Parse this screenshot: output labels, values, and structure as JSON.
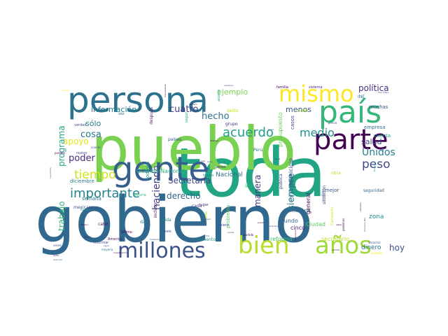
{
  "words": [
    {
      "text": "gobierno",
      "color": "#31688e",
      "weight": 100
    },
    {
      "text": "toda",
      "color": "#21a585",
      "weight": 90
    },
    {
      "text": "pueblo",
      "color": "#7ad151",
      "weight": 88
    },
    {
      "text": "persona",
      "color": "#2c728e",
      "weight": 55
    },
    {
      "text": "gente",
      "color": "#355f8d",
      "weight": 52
    },
    {
      "text": "país",
      "color": "#35b779",
      "weight": 45
    },
    {
      "text": "parte",
      "color": "#440154",
      "weight": 38
    },
    {
      "text": "mismo",
      "color": "#fde725",
      "weight": 38
    },
    {
      "text": "años",
      "color": "#a0da39",
      "weight": 34
    },
    {
      "text": "bien",
      "color": "#b5de2b",
      "weight": 33
    },
    {
      "text": "millones",
      "color": "#3b528b",
      "weight": 30
    },
    {
      "text": "importante",
      "color": "#26828e",
      "weight": 20
    },
    {
      "text": "tiempo",
      "color": "#d2e21b",
      "weight": 18
    },
    {
      "text": "acuerdo",
      "color": "#1f9e89",
      "weight": 18
    },
    {
      "text": "peso",
      "color": "#3e4989",
      "weight": 16
    },
    {
      "text": "medio",
      "color": "#21918c",
      "weight": 15
    },
    {
      "text": "Unidos",
      "color": "#287c8e",
      "weight": 14
    },
    {
      "text": "haciendo",
      "color": "#414487",
      "weight": 14
    },
    {
      "text": "siempre",
      "color": "#2a788e",
      "weight": 13
    },
    {
      "text": "Secretaria",
      "color": "#3f4889",
      "weight": 12
    },
    {
      "text": "derecho",
      "color": "#30698e",
      "weight": 12
    },
    {
      "text": "hecho",
      "color": "#2d708e",
      "weight": 12
    },
    {
      "text": "manera",
      "color": "#46337f",
      "weight": 11
    },
    {
      "text": "apoyo",
      "color": "#e5e419",
      "weight": 12
    },
    {
      "text": "poder",
      "color": "#472d7b",
      "weight": 12
    },
    {
      "text": "cosa",
      "color": "#2a768e",
      "weight": 11
    },
    {
      "text": "cuatro",
      "color": "#443a83",
      "weight": 11
    },
    {
      "text": "información",
      "color": "#26818e",
      "weight": 11
    },
    {
      "text": "ejemplo",
      "color": "#7fd34e",
      "weight": 11
    },
    {
      "text": "política",
      "color": "#472f7d",
      "weight": 11
    },
    {
      "text": "programa",
      "color": "#20a486",
      "weight": 11
    },
    {
      "text": "trabajo",
      "color": "#35b779",
      "weight": 11
    },
    {
      "text": "hoy",
      "color": "#3b528b",
      "weight": 11
    },
    {
      "text": "salud",
      "color": "#414487",
      "weight": 10
    },
    {
      "text": "menos",
      "color": "#39568c",
      "weight": 10
    },
    {
      "text": "sólo",
      "color": "#27808e",
      "weight": 10
    },
    {
      "text": "Nacional",
      "color": "#2e6e8e",
      "weight": 9
    },
    {
      "text": "presupuesto",
      "color": "#6ccd5a",
      "weight": 9
    },
    {
      "text": "municipio",
      "color": "#3a548c",
      "weight": 9
    },
    {
      "text": "dinero",
      "color": "#2c738e",
      "weight": 9
    },
    {
      "text": "Guardia Nacional",
      "color": "#2fb47c",
      "weight": 7
    },
    {
      "text": "reforma",
      "color": "#3fbc73",
      "weight": 8
    },
    {
      "text": "secretario",
      "color": "#b8de29",
      "weight": 8
    },
    {
      "text": "zona",
      "color": "#23898e",
      "weight": 8
    },
    {
      "text": "mundo",
      "color": "#31678e",
      "weight": 8
    },
    {
      "text": "Ciudad",
      "color": "#5ec962",
      "weight": 8
    },
    {
      "text": "general",
      "color": "#440154",
      "weight": 8
    },
    {
      "text": "cinco",
      "color": "#482374",
      "weight": 8
    },
    {
      "text": "mañana",
      "color": "#33638d",
      "weight": 7
    },
    {
      "text": "problema",
      "color": "#5ec962",
      "weight": 7
    },
    {
      "text": "empresa",
      "color": "#2a788e",
      "weight": 7
    },
    {
      "text": "cuenta",
      "color": "#1e9b8a",
      "weight": 7
    },
    {
      "text": "casos",
      "color": "#404688",
      "weight": 7
    },
    {
      "text": "muchas",
      "color": "#3b528b",
      "weight": 7
    },
    {
      "text": "creo",
      "color": "#b5de2b",
      "weight": 7
    },
    {
      "text": "todavía",
      "color": "#20928c",
      "weight": 7
    },
    {
      "text": "ley",
      "color": "#2db27d",
      "weight": 7
    },
    {
      "text": "diciembre",
      "color": "#287d8e",
      "weight": 7
    },
    {
      "text": "semana",
      "color": "#2b758e",
      "weight": 7
    },
    {
      "text": "seguridad",
      "color": "#31688e",
      "weight": 6
    },
    {
      "text": "situación",
      "color": "#3e4989",
      "weight": 6
    },
    {
      "text": "mejor",
      "color": "#3b528b",
      "weight": 7
    },
    {
      "text": "obra",
      "color": "#b5de2b",
      "weight": 6
    },
    {
      "text": "construcción",
      "color": "#2c728e",
      "weight": 6
    },
    {
      "text": "pública",
      "color": "#404588",
      "weight": 6
    },
    {
      "text": "Perú",
      "color": "#287d8e",
      "weight": 6
    },
    {
      "text": "grupo",
      "color": "#472c7a",
      "weight": 6
    },
    {
      "text": "delito",
      "color": "#c8e020",
      "weight": 6
    },
    {
      "text": "después",
      "color": "#481a6c",
      "weight": 6
    },
    {
      "text": "países",
      "color": "#3b528b",
      "weight": 6
    },
    {
      "text": "momento",
      "color": "#21908d",
      "weight": 6
    },
    {
      "text": "cada",
      "color": "#453781",
      "weight": 6
    },
    {
      "text": "sino",
      "color": "#2c728e",
      "weight": 6
    },
    {
      "text": "vida",
      "color": "#25848e",
      "weight": 6
    },
    {
      "text": "incluso",
      "color": "#440154",
      "weight": 6
    },
    {
      "text": "dar",
      "color": "#27808e",
      "weight": 6
    },
    {
      "text": "cabo",
      "color": "#471365",
      "weight": 6
    },
    {
      "text": "historia",
      "color": "#35b779",
      "weight": 5
    },
    {
      "text": "mexicano",
      "color": "#3b528b",
      "weight": 6
    },
    {
      "text": "verdad",
      "color": "#3e4a89",
      "weight": 5
    },
    {
      "text": "vez",
      "color": "#2e6e8e",
      "weight": 5
    },
    {
      "text": "nuevo",
      "color": "#3b528b",
      "weight": 5
    },
    {
      "text": "pueden",
      "color": "#440154",
      "weight": 4
    },
    {
      "text": "asunto",
      "color": "#22a884",
      "weight": 5
    },
    {
      "text": "pesos",
      "color": "#482878",
      "weight": 5
    },
    {
      "text": "lugar",
      "color": "#482475",
      "weight": 5
    },
    {
      "text": "seguir",
      "color": "#25ac82",
      "weight": 5
    },
    {
      "text": "informar",
      "color": "#3b528b",
      "weight": 5
    },
    {
      "text": "América",
      "color": "#481668",
      "weight": 5
    },
    {
      "text": "último",
      "color": "#440154",
      "weight": 5
    },
    {
      "text": "hacen",
      "color": "#25848e",
      "weight": 4
    },
    {
      "text": "veces",
      "color": "#3e4989",
      "weight": 4
    },
    {
      "text": "Campeche",
      "color": "#d8e219",
      "weight": 5
    },
    {
      "text": "podemos",
      "color": "#440154",
      "weight": 4
    },
    {
      "text": "Veracruz",
      "color": "#3b528b",
      "weight": 4
    },
    {
      "text": "proceso",
      "color": "#fde725",
      "weight": 4
    },
    {
      "text": "INE",
      "color": "#2a788e",
      "weight": 6
    },
    {
      "text": "familia",
      "color": "#440154",
      "weight": 5
    },
    {
      "text": "sistema",
      "color": "#481f70",
      "weight": 5
    },
    {
      "text": "precio",
      "color": "#3b528b",
      "weight": 4
    },
    {
      "text": "cuanto",
      "color": "#3e4989",
      "weight": 4
    },
    {
      "text": "próximo",
      "color": "#31688e",
      "weight": 4
    },
    {
      "text": "quiero",
      "color": "#3b528b",
      "weight": 5
    },
    {
      "text": "partido",
      "color": "#440154",
      "weight": 4
    },
    {
      "text": "seis",
      "color": "#3b528b",
      "weight": 5
    },
    {
      "text": "sido",
      "color": "#bddf26",
      "weight": 5
    },
    {
      "text": "ir",
      "color": "#482878",
      "weight": 5
    },
    {
      "text": "tramo",
      "color": "#26818e",
      "weight": 5
    },
    {
      "text": "favor",
      "color": "#482878",
      "weight": 4
    },
    {
      "text": "mayoría",
      "color": "#2a788e",
      "weight": 4
    },
    {
      "text": "número",
      "color": "#440154",
      "weight": 3
    },
    {
      "text": "centavos",
      "color": "#3b528b",
      "weight": 3
    },
    {
      "text": "libertad",
      "color": "#440154",
      "weight": 3
    },
    {
      "text": "hablando",
      "color": "#3b528b",
      "weight": 3
    },
    {
      "text": "total",
      "color": "#2a788e",
      "weight": 3
    },
    {
      "text": "nunca",
      "color": "#440154",
      "weight": 3
    },
    {
      "text": "llama",
      "color": "#3b528b",
      "weight": 3
    },
    {
      "text": "pueda",
      "color": "#440154",
      "weight": 3
    },
    {
      "text": "gran",
      "color": "#3b528b",
      "weight": 3
    },
    {
      "text": "mayor",
      "color": "#3b528b",
      "weight": 3
    },
    {
      "text": "cambio",
      "color": "#440154",
      "weight": 3
    },
    {
      "text": "detenido",
      "color": "#31688e",
      "weight": 3
    },
    {
      "text": "partir",
      "color": "#440154",
      "weight": 3
    },
    {
      "text": "tanto",
      "color": "#3b528b",
      "weight": 3
    },
    {
      "text": "casi",
      "color": "#440154",
      "weight": 3
    },
    {
      "text": "hacia",
      "color": "#3b528b",
      "weight": 3
    },
    {
      "text": "Bienestar",
      "color": "#1f9e89",
      "weight": 3
    },
    {
      "text": "Tren Maya",
      "color": "#3b528b",
      "weight": 3
    },
    {
      "text": "aeropuerto",
      "color": "#440154",
      "weight": 3
    },
    {
      "text": "político",
      "color": "#3b528b",
      "weight": 4
    },
    {
      "text": "saber",
      "color": "#440154",
      "weight": 3
    },
    {
      "text": "Quintana Roo",
      "color": "#3b528b",
      "weight": 3
    },
    {
      "text": "periodo",
      "color": "#440154",
      "weight": 3
    },
    {
      "text": "noviembre",
      "color": "#3b528b",
      "weight": 3
    },
    {
      "text": "investigación",
      "color": "#440154",
      "weight": 3
    },
    {
      "text": "campaña",
      "color": "#3b528b",
      "weight": 3
    },
    {
      "text": "atención",
      "color": "#440154",
      "weight": 3
    },
    {
      "text": "sigue",
      "color": "#3b528b",
      "weight": 3
    },
    {
      "text": "trabajadores",
      "color": "#440154",
      "weight": 3
    },
    {
      "text": "apoyos",
      "color": "#fde725",
      "weight": 3
    }
  ]
}
